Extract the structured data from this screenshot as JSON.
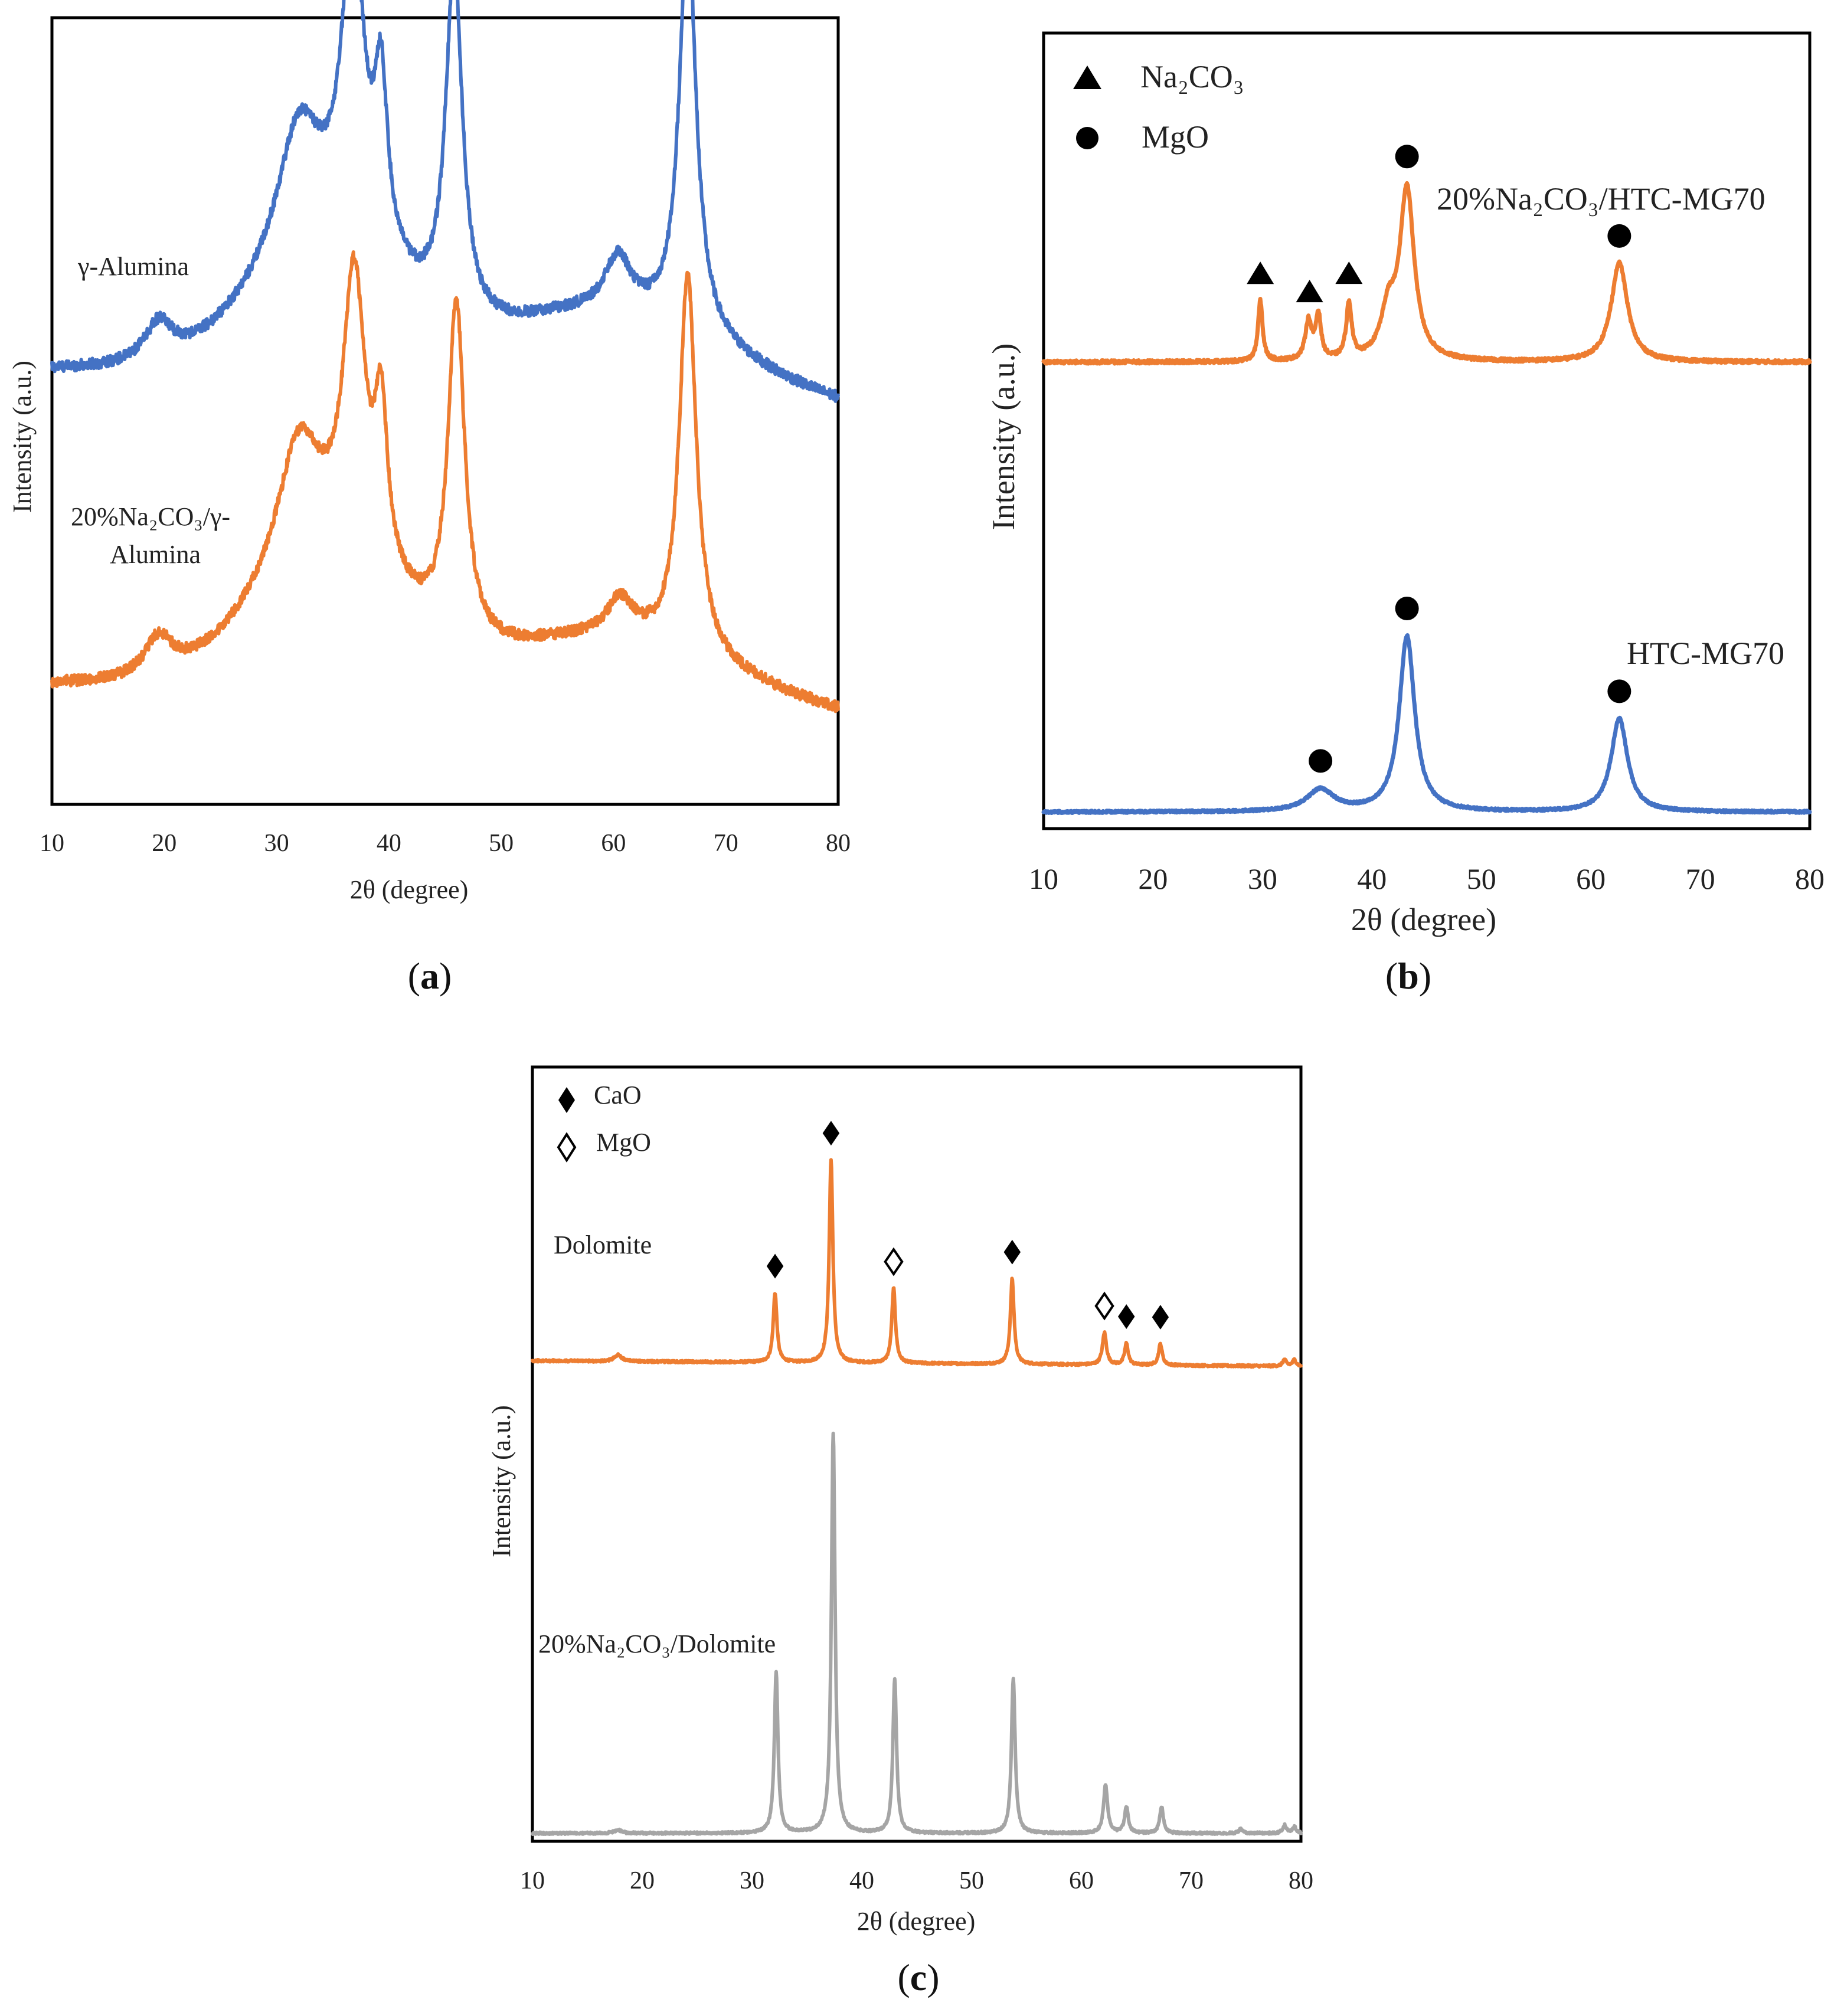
{
  "colors": {
    "blue": "#4472C4",
    "orange": "#ED7D31",
    "gray": "#A5A5A5"
  },
  "chart_data": [
    {
      "id": "a",
      "type": "line",
      "caption": "(a)",
      "caption_letter": "a",
      "xlabel": "2θ (degree)",
      "ylabel": "Intensity (a.u.)",
      "xlim": [
        10,
        80
      ],
      "ylim": [
        0,
        1.45
      ],
      "xticks": [
        10,
        20,
        30,
        40,
        50,
        60,
        70,
        80
      ],
      "grid": false,
      "series": [
        {
          "name": "γ-Alumina",
          "label_lines": [
            "γ-Alumina"
          ],
          "color": "#4472C4",
          "baseline": 0.8,
          "slope": 0.0,
          "noise": 0.01,
          "peaks": [
            {
              "x": 19.5,
              "h": 0.07,
              "w": 1.5
            },
            {
              "x": 32.0,
              "h": 0.25,
              "w": 2.4
            },
            {
              "x": 36.8,
              "h": 0.58,
              "w": 1.2
            },
            {
              "x": 39.3,
              "h": 0.3,
              "w": 0.7
            },
            {
              "x": 45.8,
              "h": 0.65,
              "w": 0.9
            },
            {
              "x": 60.4,
              "h": 0.1,
              "w": 1.4
            },
            {
              "x": 66.6,
              "h": 0.75,
              "w": 0.9
            }
          ],
          "broad": [
            {
              "x": 34.5,
              "h": 0.2,
              "w": 6.5
            },
            {
              "x": 58.5,
              "h": 0.1,
              "w": 9.0
            }
          ],
          "tail": {
            "end": 80,
            "drop": 0.06
          }
        },
        {
          "name": "20%Na2CO3/γ-Alumina",
          "label_lines": [
            "20%Na₂CO₃/γ-",
            "Alumina"
          ],
          "color": "#ED7D31",
          "baseline": 0.22,
          "slope": 0.0,
          "noise": 0.01,
          "peaks": [
            {
              "x": 19.5,
              "h": 0.07,
              "w": 1.5
            },
            {
              "x": 32.0,
              "h": 0.25,
              "w": 2.4
            },
            {
              "x": 36.9,
              "h": 0.52,
              "w": 1.2
            },
            {
              "x": 39.3,
              "h": 0.28,
              "w": 0.7
            },
            {
              "x": 46.0,
              "h": 0.62,
              "w": 0.9
            },
            {
              "x": 60.6,
              "h": 0.07,
              "w": 1.4
            },
            {
              "x": 66.6,
              "h": 0.7,
              "w": 0.9
            }
          ],
          "broad": [
            {
              "x": 34.5,
              "h": 0.2,
              "w": 6.5
            },
            {
              "x": 58.5,
              "h": 0.08,
              "w": 9.0
            }
          ],
          "tail": {
            "end": 80,
            "drop": 0.05
          }
        }
      ]
    },
    {
      "id": "b",
      "type": "line",
      "caption": "(b)",
      "caption_letter": "b",
      "xlabel": "2θ (degree)",
      "ylabel": "Intensity (a.u.)",
      "xlim": [
        10,
        80
      ],
      "ylim": [
        0,
        1.45
      ],
      "xticks": [
        10,
        20,
        30,
        40,
        50,
        60,
        70,
        80
      ],
      "grid": false,
      "legend": [
        {
          "symbol": "triangle",
          "label": "Na₂CO₃"
        },
        {
          "symbol": "circle",
          "label": "MgO"
        }
      ],
      "series": [
        {
          "name": "20%Na2CO3/HTC-MG70",
          "label_lines": [
            "20%Na₂CO₃/HTC-MG70"
          ],
          "color": "#ED7D31",
          "baseline": 0.85,
          "slope": 0.0,
          "noise": 0.003,
          "peaks": [
            {
              "x": 29.8,
              "h": 0.11,
              "w": 0.25
            },
            {
              "x": 34.2,
              "h": 0.07,
              "w": 0.35
            },
            {
              "x": 35.1,
              "h": 0.08,
              "w": 0.3
            },
            {
              "x": 37.9,
              "h": 0.1,
              "w": 0.3
            },
            {
              "x": 41.5,
              "h": 0.08,
              "w": 0.8
            },
            {
              "x": 43.2,
              "h": 0.31,
              "w": 0.8
            },
            {
              "x": 62.6,
              "h": 0.18,
              "w": 0.9
            }
          ],
          "broad": [],
          "markers": [
            {
              "x": 29.8,
              "symbol": "triangle"
            },
            {
              "x": 34.3,
              "symbol": "triangle"
            },
            {
              "x": 37.9,
              "symbol": "triangle"
            },
            {
              "x": 43.2,
              "symbol": "circle"
            },
            {
              "x": 62.6,
              "symbol": "circle"
            }
          ]
        },
        {
          "name": "HTC-MG70",
          "label_lines": [
            "HTC-MG70"
          ],
          "color": "#4472C4",
          "baseline": 0.03,
          "slope": 0.0,
          "noise": 0.002,
          "peaks": [
            {
              "x": 35.3,
              "h": 0.04,
              "w": 1.5
            },
            {
              "x": 43.2,
              "h": 0.32,
              "w": 0.85
            },
            {
              "x": 62.6,
              "h": 0.17,
              "w": 0.9
            }
          ],
          "broad": [],
          "markers": [
            {
              "x": 35.3,
              "symbol": "circle"
            },
            {
              "x": 43.2,
              "symbol": "circle"
            },
            {
              "x": 62.6,
              "symbol": "circle"
            }
          ]
        }
      ]
    },
    {
      "id": "c",
      "type": "line",
      "caption": "(c)",
      "caption_letter": "c",
      "xlabel": "2θ (degree)",
      "ylabel": "Intensity (a.u.)",
      "xlim": [
        10,
        80
      ],
      "ylim": [
        0,
        1.45
      ],
      "xticks": [
        10,
        20,
        30,
        40,
        50,
        60,
        70,
        80
      ],
      "grid": false,
      "legend": [
        {
          "symbol": "diamond-filled",
          "label": "CaO"
        },
        {
          "symbol": "diamond-open",
          "label": "MgO"
        }
      ],
      "series": [
        {
          "name": "Dolomite",
          "label_lines": [
            "Dolomite"
          ],
          "color": "#ED7D31",
          "baseline": 0.9,
          "slope": -0.00015,
          "noise": 0.002,
          "peaks": [
            {
              "x": 17.8,
              "h": 0.012,
              "w": 0.4
            },
            {
              "x": 32.1,
              "h": 0.13,
              "w": 0.2
            },
            {
              "x": 37.2,
              "h": 0.38,
              "w": 0.2
            },
            {
              "x": 42.9,
              "h": 0.14,
              "w": 0.2
            },
            {
              "x": 53.7,
              "h": 0.16,
              "w": 0.2
            },
            {
              "x": 62.1,
              "h": 0.06,
              "w": 0.22
            },
            {
              "x": 64.1,
              "h": 0.04,
              "w": 0.2
            },
            {
              "x": 67.2,
              "h": 0.04,
              "w": 0.2
            },
            {
              "x": 78.5,
              "h": 0.012,
              "w": 0.2
            },
            {
              "x": 79.4,
              "h": 0.012,
              "w": 0.2
            }
          ],
          "broad": [],
          "markers": [
            {
              "x": 32.1,
              "symbol": "diamond-filled"
            },
            {
              "x": 37.2,
              "symbol": "diamond-filled"
            },
            {
              "x": 42.9,
              "symbol": "diamond-open"
            },
            {
              "x": 53.7,
              "symbol": "diamond-filled"
            },
            {
              "x": 62.1,
              "symbol": "diamond-open"
            },
            {
              "x": 64.1,
              "symbol": "diamond-filled"
            },
            {
              "x": 67.2,
              "symbol": "diamond-filled"
            }
          ]
        },
        {
          "name": "20%Na2CO3/Dolomite",
          "label_lines": [
            "20%Na₂CO₃/Dolomite"
          ],
          "color": "#A5A5A5",
          "baseline": 0.015,
          "slope": 0.0,
          "noise": 0.002,
          "peaks": [
            {
              "x": 17.8,
              "h": 0.006,
              "w": 0.4
            },
            {
              "x": 32.2,
              "h": 0.3,
              "w": 0.2
            },
            {
              "x": 37.4,
              "h": 0.75,
              "w": 0.2
            },
            {
              "x": 43.0,
              "h": 0.29,
              "w": 0.2
            },
            {
              "x": 53.8,
              "h": 0.29,
              "w": 0.2
            },
            {
              "x": 62.2,
              "h": 0.09,
              "w": 0.22
            },
            {
              "x": 64.1,
              "h": 0.05,
              "w": 0.2
            },
            {
              "x": 67.3,
              "h": 0.05,
              "w": 0.2
            },
            {
              "x": 74.5,
              "h": 0.008,
              "w": 0.2
            },
            {
              "x": 78.5,
              "h": 0.015,
              "w": 0.2
            },
            {
              "x": 79.4,
              "h": 0.012,
              "w": 0.2
            }
          ],
          "broad": [],
          "markers": []
        }
      ]
    }
  ]
}
